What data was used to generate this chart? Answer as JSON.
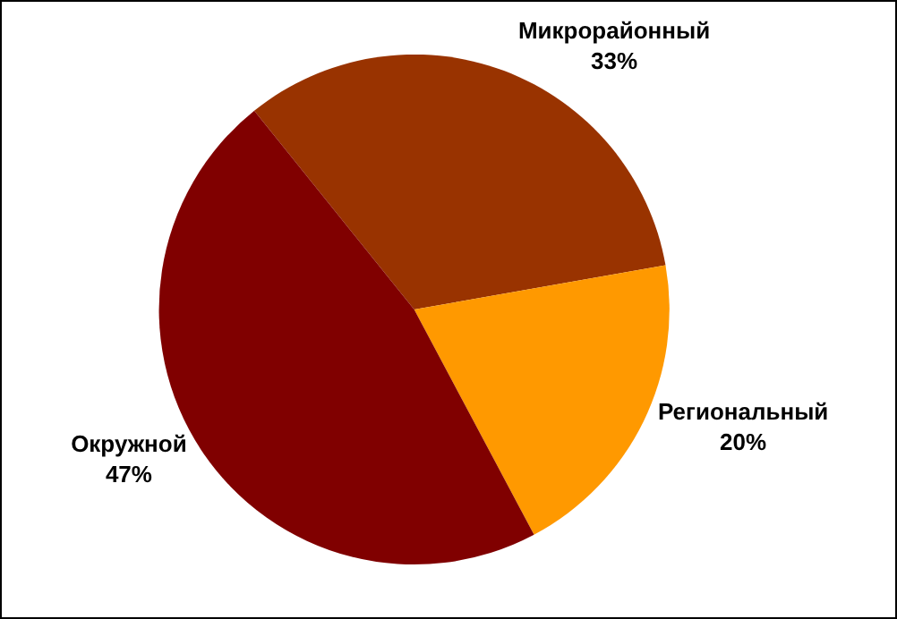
{
  "chart_data": {
    "type": "pie",
    "categories": [
      "Микрорайонный",
      "Региональный",
      "Окружной"
    ],
    "values": [
      33,
      20,
      47
    ],
    "colors": [
      "#993300",
      "#ff9900",
      "#800000"
    ],
    "value_labels": [
      "33%",
      "20%",
      "47%"
    ],
    "legend": false
  }
}
